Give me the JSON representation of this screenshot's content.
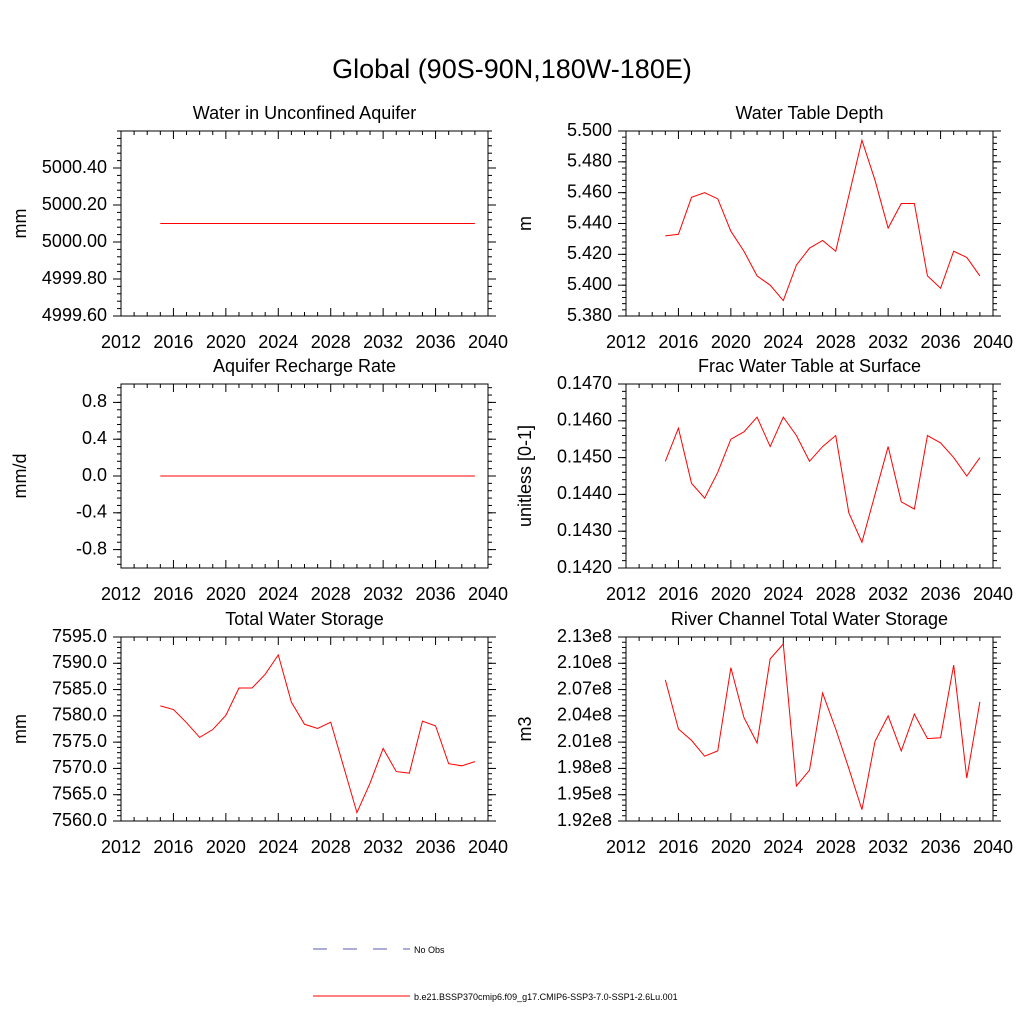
{
  "main_title": "Global (90S-90N,180W-180E)",
  "colors": {
    "series": "#ff0000",
    "no_obs": "#5a5ab4",
    "axis": "#000000"
  },
  "legend": {
    "entries": [
      {
        "label": "No Obs",
        "style": "dashed",
        "color": "#5a5ab4"
      },
      {
        "label": "b.e21.BSSP370cmip6.f09_g17.CMIP6-SSP3-7.0-SSP1-2.6Lu.001",
        "style": "solid",
        "color": "#ff0000"
      }
    ]
  },
  "chart_data": [
    {
      "type": "line",
      "title": "Water in Unconfined Aquifer",
      "ylabel": "mm",
      "xlim": [
        2012,
        2040
      ],
      "ylim": [
        4999.6,
        5000.6
      ],
      "xticks": [
        2012,
        2016,
        2020,
        2024,
        2028,
        2032,
        2036,
        2040
      ],
      "yticks": [
        4999.6,
        4999.8,
        5000.0,
        5000.2,
        5000.4
      ],
      "ytick_labels": [
        "4999.60",
        "4999.80",
        "5000.00",
        "5000.20",
        "5000.40"
      ],
      "x": [
        2015,
        2016,
        2017,
        2018,
        2019,
        2020,
        2021,
        2022,
        2023,
        2024,
        2025,
        2026,
        2027,
        2028,
        2029,
        2030,
        2031,
        2032,
        2033,
        2034,
        2035,
        2036,
        2037,
        2038,
        2039
      ],
      "series": [
        {
          "values": [
            5000.1,
            5000.1,
            5000.1,
            5000.1,
            5000.1,
            5000.1,
            5000.1,
            5000.1,
            5000.1,
            5000.1,
            5000.1,
            5000.1,
            5000.1,
            5000.1,
            5000.1,
            5000.1,
            5000.1,
            5000.1,
            5000.1,
            5000.1,
            5000.1,
            5000.1,
            5000.1,
            5000.1,
            5000.1
          ]
        }
      ]
    },
    {
      "type": "line",
      "title": "Water Table Depth",
      "ylabel": "m",
      "xlim": [
        2012,
        2040
      ],
      "ylim": [
        5.38,
        5.5
      ],
      "xticks": [
        2012,
        2016,
        2020,
        2024,
        2028,
        2032,
        2036,
        2040
      ],
      "yticks": [
        5.38,
        5.4,
        5.42,
        5.44,
        5.46,
        5.48,
        5.5
      ],
      "ytick_labels": [
        "5.380",
        "5.400",
        "5.420",
        "5.440",
        "5.460",
        "5.480",
        "5.500"
      ],
      "x": [
        2015,
        2016,
        2017,
        2018,
        2019,
        2020,
        2021,
        2022,
        2023,
        2024,
        2025,
        2026,
        2027,
        2028,
        2029,
        2030,
        2031,
        2032,
        2033,
        2034,
        2035,
        2036,
        2037,
        2038,
        2039
      ],
      "series": [
        {
          "values": [
            5.432,
            5.433,
            5.457,
            5.46,
            5.456,
            5.435,
            5.422,
            5.406,
            5.4,
            5.39,
            5.413,
            5.424,
            5.429,
            5.422,
            5.458,
            5.494,
            5.468,
            5.437,
            5.453,
            5.453,
            5.406,
            5.398,
            5.422,
            5.418,
            5.406
          ]
        }
      ]
    },
    {
      "type": "line",
      "title": "Aquifer Recharge Rate",
      "ylabel": "mm/d",
      "xlim": [
        2012,
        2040
      ],
      "ylim": [
        -1.0,
        1.0
      ],
      "xticks": [
        2012,
        2016,
        2020,
        2024,
        2028,
        2032,
        2036,
        2040
      ],
      "yticks": [
        -0.8,
        -0.4,
        0.0,
        0.4,
        0.8
      ],
      "ytick_labels": [
        "-0.8",
        "-0.4",
        "0.0",
        "0.4",
        "0.8"
      ],
      "x": [
        2015,
        2016,
        2017,
        2018,
        2019,
        2020,
        2021,
        2022,
        2023,
        2024,
        2025,
        2026,
        2027,
        2028,
        2029,
        2030,
        2031,
        2032,
        2033,
        2034,
        2035,
        2036,
        2037,
        2038,
        2039
      ],
      "series": [
        {
          "values": [
            0,
            0,
            0,
            0,
            0,
            0,
            0,
            0,
            0,
            0,
            0,
            0,
            0,
            0,
            0,
            0,
            0,
            0,
            0,
            0,
            0,
            0,
            0,
            0,
            0
          ]
        }
      ]
    },
    {
      "type": "line",
      "title": "Frac Water Table at Surface",
      "ylabel": "unitless [0-1]",
      "xlim": [
        2012,
        2040
      ],
      "ylim": [
        0.142,
        0.147
      ],
      "xticks": [
        2012,
        2016,
        2020,
        2024,
        2028,
        2032,
        2036,
        2040
      ],
      "yticks": [
        0.142,
        0.143,
        0.144,
        0.145,
        0.146,
        0.147
      ],
      "ytick_labels": [
        "0.1420",
        "0.1430",
        "0.1440",
        "0.1450",
        "0.1460",
        "0.1470"
      ],
      "x": [
        2015,
        2016,
        2017,
        2018,
        2019,
        2020,
        2021,
        2022,
        2023,
        2024,
        2025,
        2026,
        2027,
        2028,
        2029,
        2030,
        2031,
        2032,
        2033,
        2034,
        2035,
        2036,
        2037,
        2038,
        2039
      ],
      "series": [
        {
          "values": [
            0.1449,
            0.1458,
            0.1443,
            0.1439,
            0.1446,
            0.1455,
            0.1457,
            0.1461,
            0.1453,
            0.1461,
            0.1456,
            0.1449,
            0.1453,
            0.1456,
            0.1435,
            0.1427,
            0.144,
            0.1453,
            0.1438,
            0.1436,
            0.1456,
            0.1454,
            0.145,
            0.1445,
            0.145
          ]
        }
      ]
    },
    {
      "type": "line",
      "title": "Total Water Storage",
      "ylabel": "mm",
      "xlim": [
        2012,
        2040
      ],
      "ylim": [
        7560.0,
        7595.0
      ],
      "xticks": [
        2012,
        2016,
        2020,
        2024,
        2028,
        2032,
        2036,
        2040
      ],
      "yticks": [
        7560,
        7565,
        7570,
        7575,
        7580,
        7585,
        7590,
        7595
      ],
      "ytick_labels": [
        "7560.0",
        "7565.0",
        "7570.0",
        "7575.0",
        "7580.0",
        "7585.0",
        "7590.0",
        "7595.0"
      ],
      "x": [
        2015,
        2016,
        2017,
        2018,
        2019,
        2020,
        2021,
        2022,
        2023,
        2024,
        2025,
        2026,
        2027,
        2028,
        2029,
        2030,
        2031,
        2032,
        2033,
        2034,
        2035,
        2036,
        2037,
        2038,
        2039
      ],
      "series": [
        {
          "values": [
            7581.9,
            7581.2,
            7578.7,
            7575.9,
            7577.4,
            7580.1,
            7585.3,
            7585.3,
            7587.9,
            7591.6,
            7582.6,
            7578.4,
            7577.6,
            7578.8,
            7570.2,
            7561.6,
            7567.2,
            7573.8,
            7569.4,
            7569.1,
            7579.0,
            7578.1,
            7570.9,
            7570.5,
            7571.3
          ]
        }
      ]
    },
    {
      "type": "line",
      "title": "River Channel Total Water Storage",
      "ylabel": "m3",
      "xlim": [
        2012,
        2040
      ],
      "ylim": [
        192000000.0,
        213000000.0
      ],
      "xticks": [
        2012,
        2016,
        2020,
        2024,
        2028,
        2032,
        2036,
        2040
      ],
      "yticks": [
        192000000.0,
        195000000.0,
        198000000.0,
        201000000.0,
        204000000.0,
        207000000.0,
        210000000.0,
        213000000.0
      ],
      "ytick_labels": [
        "1.92e8",
        "1.95e8",
        "1.98e8",
        "2.01e8",
        "2.04e8",
        "2.07e8",
        "2.10e8",
        "2.13e8"
      ],
      "x": [
        2015,
        2016,
        2017,
        2018,
        2019,
        2020,
        2021,
        2022,
        2023,
        2024,
        2025,
        2026,
        2027,
        2028,
        2029,
        2030,
        2031,
        2032,
        2033,
        2034,
        2035,
        2036,
        2037,
        2038,
        2039
      ],
      "series": [
        {
          "values": [
            208100000.0,
            202500000.0,
            201200000.0,
            199400000.0,
            200000000.0,
            209500000.0,
            203800000.0,
            200900000.0,
            210500000.0,
            212200000.0,
            196000000.0,
            197800000.0,
            206600000.0,
            202500000.0,
            198000000.0,
            193300000.0,
            201100000.0,
            204000000.0,
            200000000.0,
            204200000.0,
            201400000.0,
            201500000.0,
            209800000.0,
            196900000.0,
            205600000.0
          ]
        }
      ]
    }
  ]
}
